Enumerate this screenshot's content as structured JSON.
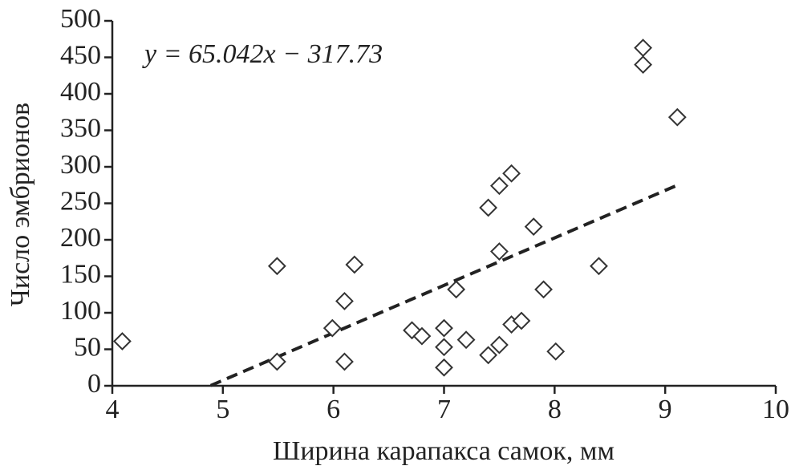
{
  "chart_data": {
    "type": "scatter",
    "x_label": "Ширина карапакса самок, мм",
    "y_label": "Число эмбрионов",
    "annotation": "y = 65.042x − 317.73",
    "xlim": [
      4,
      10
    ],
    "xticks": [
      4,
      5,
      6,
      7,
      8,
      9,
      10
    ],
    "ylim": [
      0,
      500
    ],
    "yticks": [
      0,
      50,
      100,
      150,
      200,
      250,
      300,
      350,
      400,
      450,
      500
    ],
    "color": "#333333",
    "trendline": {
      "slope": 65.042,
      "intercept": -317.73,
      "x": [
        4.89,
        9.1
      ]
    },
    "series": [
      {
        "x": [
          4.09,
          5.49,
          5.49,
          5.99,
          6.1,
          6.1,
          6.19,
          6.71,
          6.8,
          7.0,
          7.0,
          7.0,
          7.11,
          7.2,
          7.4,
          7.4,
          7.5,
          7.5,
          7.5,
          7.61,
          7.61,
          7.7,
          7.81,
          7.9,
          8.01,
          8.4,
          8.8,
          8.8,
          9.11
        ],
        "values": [
          61,
          164,
          33,
          79,
          116,
          33,
          166,
          76,
          68,
          79,
          53,
          25,
          132,
          63,
          244,
          42,
          274,
          184,
          56,
          291,
          84,
          89,
          218,
          132,
          47,
          164,
          463,
          440,
          368
        ]
      }
    ]
  }
}
